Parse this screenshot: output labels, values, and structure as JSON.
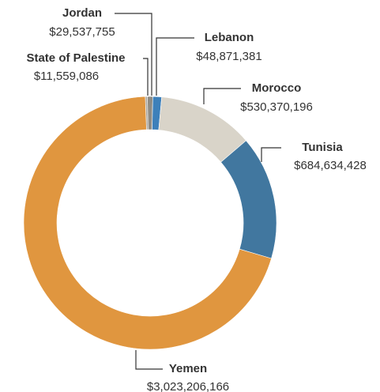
{
  "chart_data": {
    "type": "donut",
    "categories": [
      "State of Palestine",
      "Jordan",
      "Lebanon",
      "Morocco",
      "Tunisia",
      "Yemen"
    ],
    "values": [
      11559086,
      29537755,
      48871381,
      530370196,
      684634428,
      3023206166
    ],
    "value_labels": [
      "$11,559,086",
      "$29,537,755",
      "$48,871,381",
      "$530,370,196",
      "$684,634,428",
      "$3,023,206,166"
    ],
    "colors": [
      "#a8a49c",
      "#8f8c84",
      "#3d80ba",
      "#d9d4c9",
      "#41779f",
      "#e0963f"
    ]
  }
}
